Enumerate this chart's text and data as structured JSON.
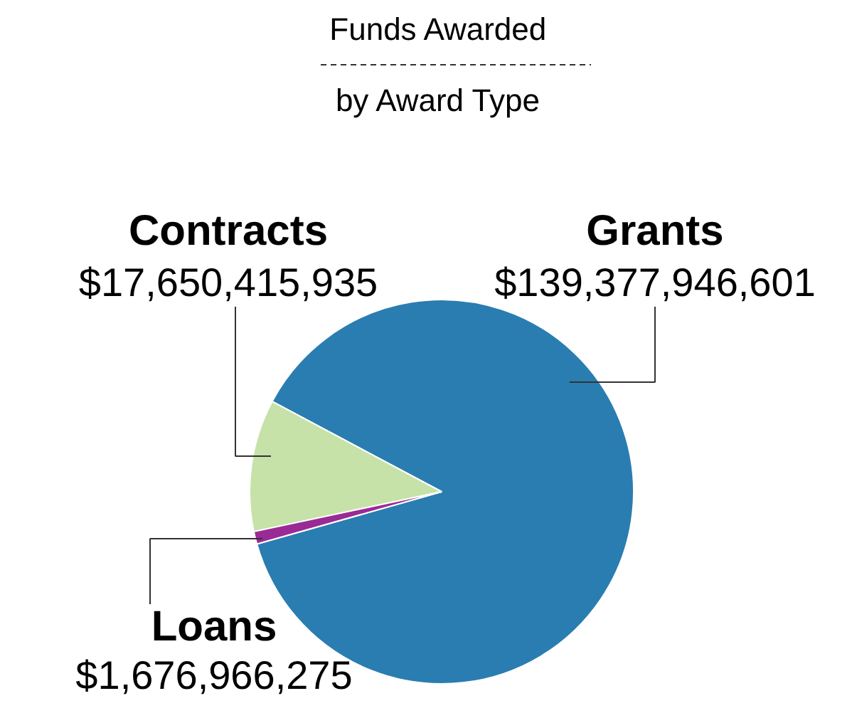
{
  "chart_data": {
    "type": "pie",
    "title": "Funds Awarded",
    "subtitle": "by Award Type",
    "categories": [
      "Grants",
      "Contracts",
      "Loans"
    ],
    "values": [
      139377946601,
      17650415935,
      1676966275
    ],
    "value_labels": [
      "$139,377,946,601",
      "$17,650,415,935",
      "$1,676,966,275"
    ],
    "colors": [
      "#2a7db0",
      "#c6e2a8",
      "#9a2a96"
    ]
  }
}
